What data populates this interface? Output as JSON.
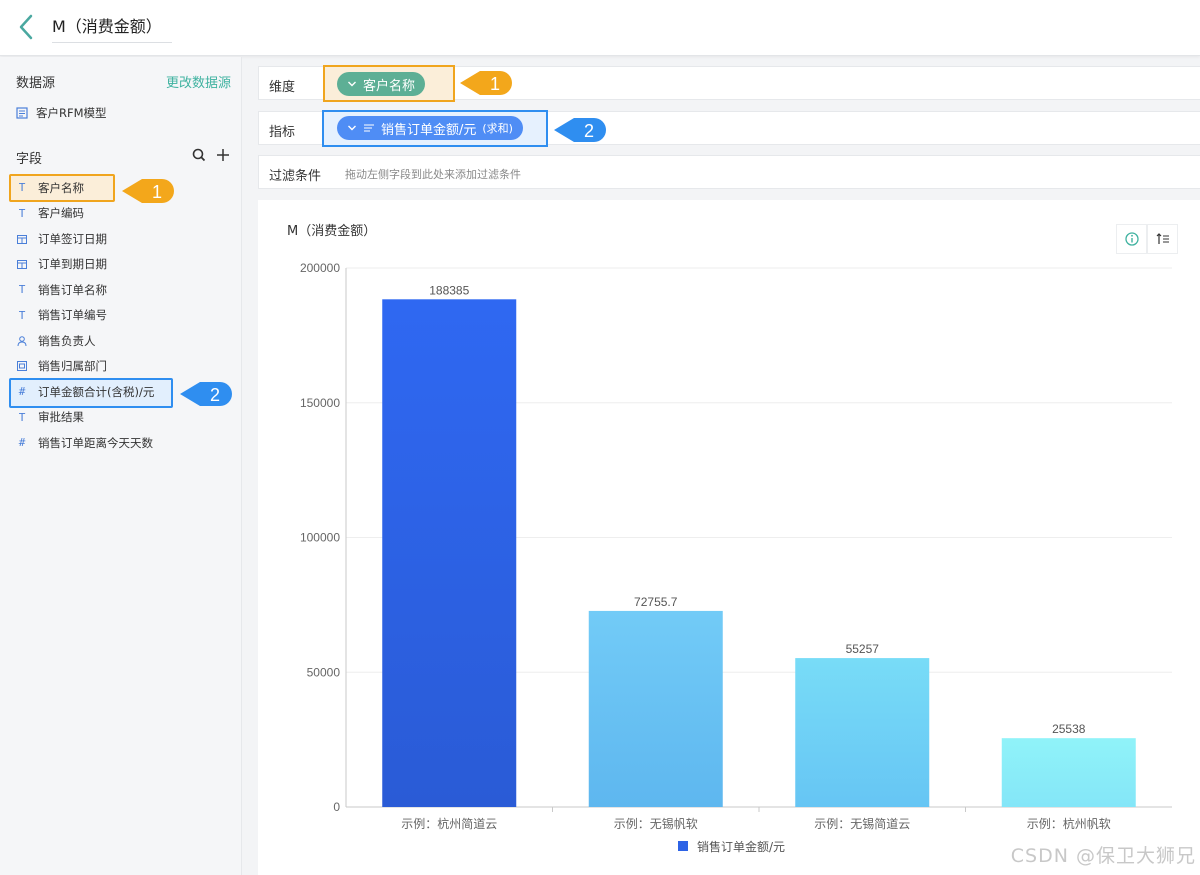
{
  "header": {
    "title": "M（消费金额）"
  },
  "sidebar": {
    "datasource_title": "数据源",
    "change_datasource": "更改数据源",
    "datasource_name": "客户RFM模型",
    "fields_title": "字段",
    "fields": [
      {
        "label": "客户名称",
        "type": "T"
      },
      {
        "label": "客户编码",
        "type": "T"
      },
      {
        "label": "订单签订日期",
        "type": "date"
      },
      {
        "label": "订单到期日期",
        "type": "date"
      },
      {
        "label": "销售订单名称",
        "type": "T"
      },
      {
        "label": "销售订单编号",
        "type": "T"
      },
      {
        "label": "销售负责人",
        "type": "user"
      },
      {
        "label": "销售归属部门",
        "type": "dept"
      },
      {
        "label": "订单金额合计(含税)/元",
        "type": "#"
      },
      {
        "label": "审批结果",
        "type": "T"
      },
      {
        "label": "销售订单距离今天天数",
        "type": "#"
      }
    ]
  },
  "config": {
    "dimension_label": "维度",
    "dimension_value": "客户名称",
    "measure_label": "指标",
    "measure_value": "销售订单金额/元",
    "measure_agg": "(求和)",
    "filter_label": "过滤条件",
    "filter_placeholder": "拖动左侧字段到此处来添加过滤条件"
  },
  "callouts": {
    "one": "1",
    "two": "2"
  },
  "chart": {
    "title": "M（消费金额）"
  },
  "chart_data": {
    "type": "bar",
    "categories": [
      "示例：杭州简道云",
      "示例：无锡帆软",
      "示例：无锡简道云",
      "示例：杭州帆软"
    ],
    "series": [
      {
        "name": "销售订单金额/元",
        "values": [
          188385,
          72755.7,
          55257,
          25538
        ]
      }
    ],
    "value_labels": [
      "188385",
      "72755.7",
      "55257",
      "25538"
    ],
    "yticks": [
      "0",
      "50000",
      "100000",
      "150000",
      "200000"
    ],
    "ylim": [
      0,
      200000
    ],
    "grid": true,
    "legend": "bottom",
    "colors": {
      "bar1": "#2d63e6",
      "bar2": "#66c0f5",
      "bar3": "#6fd3f5",
      "bar4": "#8aeef8",
      "legend": "#2d63e6"
    }
  },
  "watermark": "CSDN @保卫大狮兄"
}
